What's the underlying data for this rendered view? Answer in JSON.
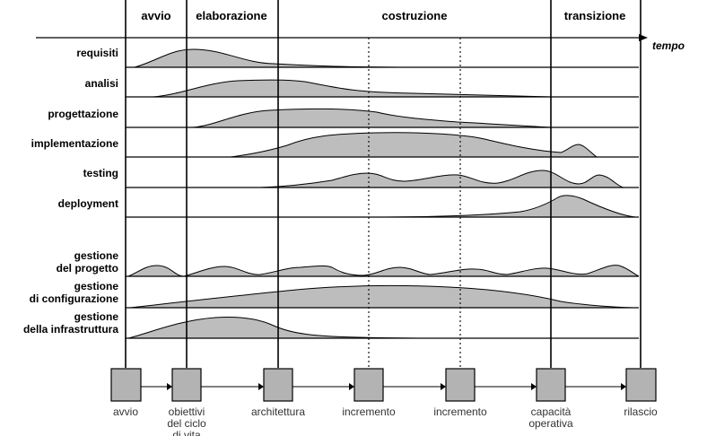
{
  "phases": {
    "avvio": "avvio",
    "elaborazione": "elaborazione",
    "costruzione": "costruzione",
    "transizione": "transizione"
  },
  "axis": {
    "tempo": "tempo"
  },
  "disciplines": {
    "requisiti": "requisiti",
    "analisi": "analisi",
    "progettazione": "progettazione",
    "implementazione": "implementazione",
    "testing": "testing",
    "deployment": "deployment",
    "gestione_progetto_1": "gestione",
    "gestione_progetto_2": "del progetto",
    "gestione_configurazione_1": "gestione",
    "gestione_configurazione_2": "di configurazione",
    "gestione_infrastruttura_1": "gestione",
    "gestione_infrastruttura_2": "della infrastruttura"
  },
  "milestones": {
    "avvio": "avvio",
    "obiettivi_1": "obiettivi",
    "obiettivi_2": "del ciclo",
    "obiettivi_3": "di vita",
    "architettura": "architettura",
    "incremento_1": "incremento",
    "incremento_2": "incremento",
    "capacita_1": "capacità",
    "capacita_2": "operativa",
    "rilascio": "rilascio"
  }
}
